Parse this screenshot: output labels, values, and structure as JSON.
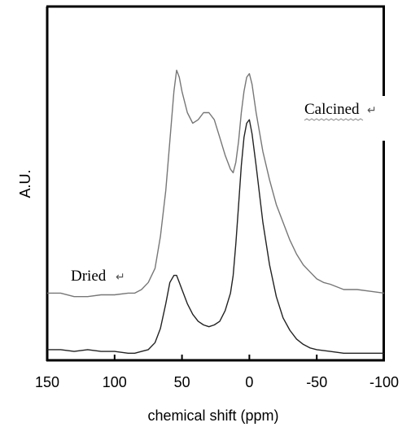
{
  "chart_data": {
    "type": "line",
    "title": "",
    "xlabel": "chemical shift (ppm)",
    "ylabel": "A.U.",
    "xlim": [
      150,
      -100
    ],
    "x_reversed": true,
    "x_ticks": [
      "150",
      "100",
      "50",
      "0",
      "-50",
      "-100"
    ],
    "y_ticks": [],
    "grid": false,
    "colors": {
      "calcined": "#777777",
      "dried": "#222222",
      "axis": "#000000"
    },
    "series": [
      {
        "name": "Calcined",
        "label_mark": "↵",
        "points": [
          [
            150,
            0.19
          ],
          [
            140,
            0.19
          ],
          [
            130,
            0.18
          ],
          [
            120,
            0.18
          ],
          [
            110,
            0.185
          ],
          [
            100,
            0.185
          ],
          [
            90,
            0.19
          ],
          [
            85,
            0.19
          ],
          [
            80,
            0.2
          ],
          [
            75,
            0.22
          ],
          [
            70,
            0.26
          ],
          [
            66,
            0.35
          ],
          [
            62,
            0.48
          ],
          [
            59,
            0.62
          ],
          [
            56,
            0.76
          ],
          [
            54,
            0.82
          ],
          [
            52,
            0.8
          ],
          [
            50,
            0.76
          ],
          [
            46,
            0.7
          ],
          [
            42,
            0.67
          ],
          [
            38,
            0.68
          ],
          [
            34,
            0.7
          ],
          [
            30,
            0.7
          ],
          [
            26,
            0.68
          ],
          [
            22,
            0.63
          ],
          [
            18,
            0.58
          ],
          [
            14,
            0.54
          ],
          [
            12,
            0.53
          ],
          [
            10,
            0.56
          ],
          [
            8,
            0.62
          ],
          [
            6,
            0.7
          ],
          [
            4,
            0.76
          ],
          [
            2,
            0.8
          ],
          [
            0,
            0.81
          ],
          [
            -2,
            0.78
          ],
          [
            -5,
            0.7
          ],
          [
            -10,
            0.59
          ],
          [
            -15,
            0.51
          ],
          [
            -20,
            0.44
          ],
          [
            -25,
            0.39
          ],
          [
            -30,
            0.34
          ],
          [
            -35,
            0.3
          ],
          [
            -40,
            0.27
          ],
          [
            -45,
            0.25
          ],
          [
            -50,
            0.23
          ],
          [
            -55,
            0.22
          ],
          [
            -60,
            0.215
          ],
          [
            -70,
            0.2
          ],
          [
            -80,
            0.2
          ],
          [
            -90,
            0.195
          ],
          [
            -100,
            0.19
          ]
        ]
      },
      {
        "name": "Dried",
        "label_mark": "↵",
        "points": [
          [
            150,
            0.03
          ],
          [
            140,
            0.03
          ],
          [
            130,
            0.025
          ],
          [
            120,
            0.03
          ],
          [
            110,
            0.025
          ],
          [
            100,
            0.025
          ],
          [
            90,
            0.02
          ],
          [
            85,
            0.02
          ],
          [
            80,
            0.025
          ],
          [
            75,
            0.03
          ],
          [
            70,
            0.05
          ],
          [
            66,
            0.09
          ],
          [
            62,
            0.16
          ],
          [
            59,
            0.22
          ],
          [
            56,
            0.24
          ],
          [
            54,
            0.24
          ],
          [
            52,
            0.22
          ],
          [
            50,
            0.2
          ],
          [
            46,
            0.16
          ],
          [
            42,
            0.13
          ],
          [
            38,
            0.11
          ],
          [
            34,
            0.1
          ],
          [
            30,
            0.095
          ],
          [
            26,
            0.1
          ],
          [
            22,
            0.11
          ],
          [
            18,
            0.14
          ],
          [
            14,
            0.19
          ],
          [
            12,
            0.24
          ],
          [
            10,
            0.33
          ],
          [
            8,
            0.44
          ],
          [
            6,
            0.55
          ],
          [
            4,
            0.63
          ],
          [
            2,
            0.67
          ],
          [
            0,
            0.68
          ],
          [
            -2,
            0.64
          ],
          [
            -5,
            0.55
          ],
          [
            -10,
            0.39
          ],
          [
            -15,
            0.27
          ],
          [
            -20,
            0.18
          ],
          [
            -25,
            0.12
          ],
          [
            -30,
            0.085
          ],
          [
            -35,
            0.06
          ],
          [
            -40,
            0.045
          ],
          [
            -45,
            0.035
          ],
          [
            -50,
            0.03
          ],
          [
            -60,
            0.025
          ],
          [
            -70,
            0.02
          ],
          [
            -80,
            0.02
          ],
          [
            -90,
            0.02
          ],
          [
            -100,
            0.02
          ]
        ]
      }
    ]
  }
}
